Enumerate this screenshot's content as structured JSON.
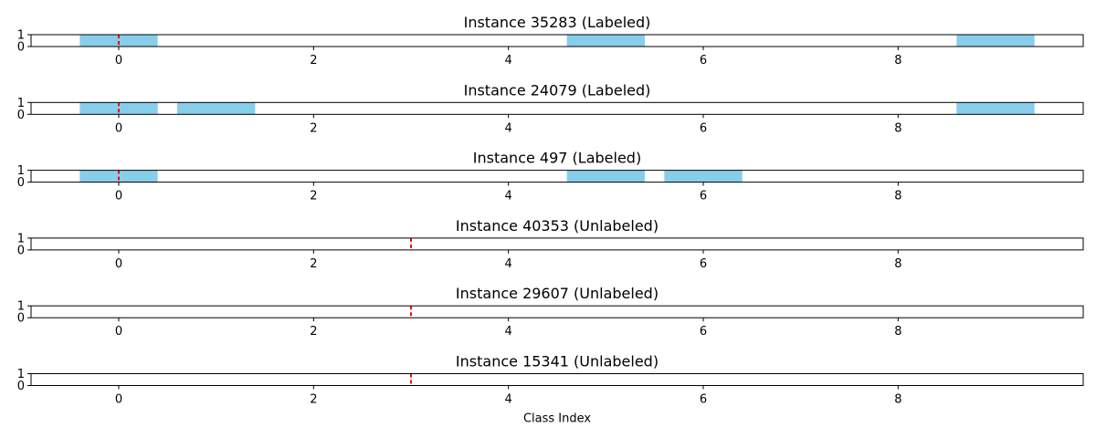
{
  "colors": {
    "bar": "#87ceeb",
    "marker": "#ff0000",
    "axis": "#000000"
  },
  "chart_data": [
    {
      "type": "bar",
      "title": "Instance 35283 (Labeled)",
      "x": [
        0,
        1,
        2,
        3,
        4,
        5,
        6,
        7,
        8,
        9
      ],
      "values": [
        1,
        0,
        0,
        0,
        0,
        1,
        0,
        0,
        0,
        1
      ],
      "marker_x": 0,
      "xlim": [
        -0.9,
        9.9
      ],
      "ylim": [
        0,
        1
      ],
      "xticks": [
        0,
        2,
        4,
        6,
        8
      ],
      "yticks": [
        0,
        1
      ],
      "xlabel": ""
    },
    {
      "type": "bar",
      "title": "Instance 24079 (Labeled)",
      "x": [
        0,
        1,
        2,
        3,
        4,
        5,
        6,
        7,
        8,
        9
      ],
      "values": [
        1,
        1,
        0,
        0,
        0,
        0,
        0,
        0,
        0,
        1
      ],
      "marker_x": 0,
      "xlim": [
        -0.9,
        9.9
      ],
      "ylim": [
        0,
        1
      ],
      "xticks": [
        0,
        2,
        4,
        6,
        8
      ],
      "yticks": [
        0,
        1
      ],
      "xlabel": ""
    },
    {
      "type": "bar",
      "title": "Instance 497 (Labeled)",
      "x": [
        0,
        1,
        2,
        3,
        4,
        5,
        6,
        7,
        8,
        9
      ],
      "values": [
        1,
        0,
        0,
        0,
        0,
        1,
        1,
        0,
        0,
        0
      ],
      "marker_x": 0,
      "xlim": [
        -0.9,
        9.9
      ],
      "ylim": [
        0,
        1
      ],
      "xticks": [
        0,
        2,
        4,
        6,
        8
      ],
      "yticks": [
        0,
        1
      ],
      "xlabel": ""
    },
    {
      "type": "bar",
      "title": "Instance 40353 (Unlabeled)",
      "x": [
        0,
        1,
        2,
        3,
        4,
        5,
        6,
        7,
        8,
        9
      ],
      "values": [
        0,
        0,
        0,
        0,
        0,
        0,
        0,
        0,
        0,
        0
      ],
      "marker_x": 3,
      "xlim": [
        -0.9,
        9.9
      ],
      "ylim": [
        0,
        1
      ],
      "xticks": [
        0,
        2,
        4,
        6,
        8
      ],
      "yticks": [
        0,
        1
      ],
      "xlabel": ""
    },
    {
      "type": "bar",
      "title": "Instance 29607 (Unlabeled)",
      "x": [
        0,
        1,
        2,
        3,
        4,
        5,
        6,
        7,
        8,
        9
      ],
      "values": [
        0,
        0,
        0,
        0,
        0,
        0,
        0,
        0,
        0,
        0
      ],
      "marker_x": 3,
      "xlim": [
        -0.9,
        9.9
      ],
      "ylim": [
        0,
        1
      ],
      "xticks": [
        0,
        2,
        4,
        6,
        8
      ],
      "yticks": [
        0,
        1
      ],
      "xlabel": ""
    },
    {
      "type": "bar",
      "title": "Instance 15341 (Unlabeled)",
      "x": [
        0,
        1,
        2,
        3,
        4,
        5,
        6,
        7,
        8,
        9
      ],
      "values": [
        0,
        0,
        0,
        0,
        0,
        0,
        0,
        0,
        0,
        0
      ],
      "marker_x": 3,
      "xlim": [
        -0.9,
        9.9
      ],
      "ylim": [
        0,
        1
      ],
      "xticks": [
        0,
        2,
        4,
        6,
        8
      ],
      "yticks": [
        0,
        1
      ],
      "xlabel": "Class Index"
    }
  ]
}
